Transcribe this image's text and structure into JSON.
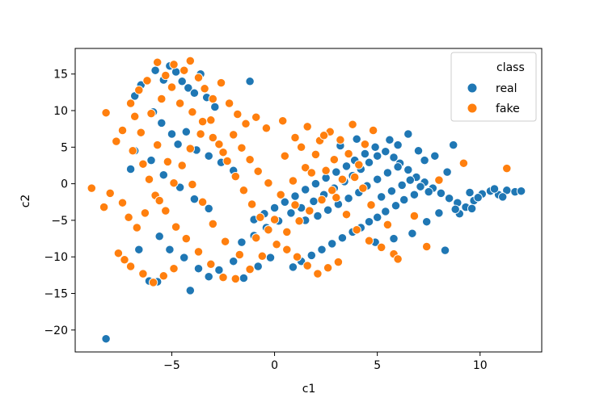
{
  "chart_data": {
    "type": "scatter",
    "title": "",
    "xlabel": "c1",
    "ylabel": "c2",
    "xlim": [
      -9.7,
      13.0
    ],
    "ylim": [
      -23.0,
      18.5
    ],
    "xticks": [
      -5,
      0,
      5,
      10
    ],
    "yticks": [
      -20,
      -15,
      -10,
      -5,
      0,
      5,
      10,
      15
    ],
    "xtick_labels": [
      "−5",
      "0",
      "5",
      "10"
    ],
    "ytick_labels": [
      "−20",
      "−15",
      "−10",
      "−5",
      "0",
      "5",
      "10",
      "15"
    ],
    "grid": false,
    "legend": {
      "title": "class",
      "position": "top-right",
      "entries": [
        {
          "label": "real",
          "color": "#1f77b4"
        },
        {
          "label": "fake",
          "color": "#ff7f0e"
        }
      ]
    },
    "series": [
      {
        "name": "real",
        "color": "#1f77b4",
        "points": [
          [
            -8.2,
            -21.2
          ],
          [
            -6.8,
            12.0
          ],
          [
            -6.5,
            13.5
          ],
          [
            -5.8,
            15.5
          ],
          [
            -5.4,
            14.2
          ],
          [
            -5.1,
            16.1
          ],
          [
            -4.8,
            15.3
          ],
          [
            -4.5,
            14.0
          ],
          [
            -4.2,
            13.1
          ],
          [
            -3.9,
            12.4
          ],
          [
            -3.6,
            15.0
          ],
          [
            -3.3,
            11.8
          ],
          [
            -2.9,
            10.5
          ],
          [
            -1.2,
            14.0
          ],
          [
            -5.9,
            9.8
          ],
          [
            -5.5,
            8.3
          ],
          [
            -5.0,
            6.8
          ],
          [
            -4.7,
            5.4
          ],
          [
            -4.3,
            7.1
          ],
          [
            -3.8,
            4.6
          ],
          [
            -3.2,
            3.8
          ],
          [
            -2.6,
            2.9
          ],
          [
            -2.0,
            1.8
          ],
          [
            -6.0,
            3.2
          ],
          [
            -6.8,
            4.5
          ],
          [
            -7.0,
            2.0
          ],
          [
            -5.4,
            1.2
          ],
          [
            -4.6,
            -0.5
          ],
          [
            -3.9,
            -2.1
          ],
          [
            -3.2,
            -3.4
          ],
          [
            -5.6,
            -7.2
          ],
          [
            -5.1,
            -9.0
          ],
          [
            -4.4,
            -10.1
          ],
          [
            -3.7,
            -11.6
          ],
          [
            -3.2,
            -12.7
          ],
          [
            -2.7,
            -11.8
          ],
          [
            -2.0,
            -10.6
          ],
          [
            -1.5,
            -12.9
          ],
          [
            -0.8,
            -11.3
          ],
          [
            -0.2,
            -10.1
          ],
          [
            -4.1,
            -14.6
          ],
          [
            -5.7,
            -13.4
          ],
          [
            -6.1,
            -13.3
          ],
          [
            -6.6,
            -9.0
          ],
          [
            -1.6,
            -8.0
          ],
          [
            -1.0,
            -7.1
          ],
          [
            -0.4,
            -6.0
          ],
          [
            0.2,
            -5.1
          ],
          [
            0.8,
            -4.0
          ],
          [
            1.3,
            -3.3
          ],
          [
            1.9,
            -2.4
          ],
          [
            2.4,
            -1.5
          ],
          [
            2.9,
            -0.6
          ],
          [
            3.4,
            0.3
          ],
          [
            3.8,
            1.1
          ],
          [
            4.2,
            2.0
          ],
          [
            4.6,
            2.9
          ],
          [
            5.0,
            3.8
          ],
          [
            5.4,
            4.4
          ],
          [
            5.8,
            3.6
          ],
          [
            6.1,
            2.8
          ],
          [
            6.5,
            1.9
          ],
          [
            6.9,
            0.9
          ],
          [
            7.3,
            0.2
          ],
          [
            7.7,
            -0.6
          ],
          [
            8.1,
            -1.3
          ],
          [
            8.5,
            -2.0
          ],
          [
            8.9,
            -2.6
          ],
          [
            9.3,
            -3.2
          ],
          [
            9.7,
            -2.3
          ],
          [
            10.1,
            -1.4
          ],
          [
            10.5,
            -1.0
          ],
          [
            10.9,
            -1.5
          ],
          [
            11.3,
            -0.9
          ],
          [
            11.7,
            -1.1
          ],
          [
            12.0,
            -1.0
          ],
          [
            11.1,
            -1.8
          ],
          [
            10.7,
            -0.7
          ],
          [
            9.9,
            -1.9
          ],
          [
            9.5,
            -1.2
          ],
          [
            8.7,
            5.3
          ],
          [
            8.3,
            -9.1
          ],
          [
            6.5,
            6.8
          ],
          [
            7.0,
            4.5
          ],
          [
            7.3,
            3.2
          ],
          [
            6.8,
            -1.5
          ],
          [
            6.3,
            -2.2
          ],
          [
            5.9,
            -3.0
          ],
          [
            5.4,
            -3.8
          ],
          [
            5.0,
            -4.6
          ],
          [
            4.6,
            -5.2
          ],
          [
            4.2,
            -6.0
          ],
          [
            3.8,
            -6.6
          ],
          [
            3.3,
            -7.4
          ],
          [
            2.8,
            -8.2
          ],
          [
            2.3,
            -9.0
          ],
          [
            1.8,
            -9.8
          ],
          [
            1.3,
            -10.6
          ],
          [
            0.9,
            -11.4
          ],
          [
            1.5,
            -5.0
          ],
          [
            2.1,
            -4.4
          ],
          [
            2.6,
            -3.6
          ],
          [
            3.1,
            -2.8
          ],
          [
            3.6,
            -2.0
          ],
          [
            4.1,
            -1.2
          ],
          [
            4.5,
            -0.3
          ],
          [
            5.0,
            0.6
          ],
          [
            5.5,
            1.5
          ],
          [
            6.0,
            2.3
          ],
          [
            4.9,
            5.0
          ],
          [
            4.4,
            4.1
          ],
          [
            3.9,
            3.2
          ],
          [
            3.5,
            2.4
          ],
          [
            3.0,
            1.6
          ],
          [
            2.5,
            0.8
          ],
          [
            2.0,
            0.0
          ],
          [
            1.5,
            -0.8
          ],
          [
            1.0,
            -1.7
          ],
          [
            0.5,
            -2.5
          ],
          [
            0.0,
            -3.3
          ],
          [
            -0.5,
            -4.1
          ],
          [
            -1.0,
            -4.9
          ],
          [
            5.2,
            -1.8
          ],
          [
            5.7,
            -1.0
          ],
          [
            6.2,
            -0.2
          ],
          [
            6.6,
            0.5
          ],
          [
            7.1,
            -0.4
          ],
          [
            7.5,
            -1.1
          ],
          [
            3.2,
            5.2
          ],
          [
            4.0,
            6.1
          ],
          [
            5.6,
            6.0
          ],
          [
            6.0,
            5.3
          ],
          [
            7.8,
            3.8
          ],
          [
            8.4,
            1.6
          ],
          [
            8.0,
            -4.0
          ],
          [
            7.4,
            -5.2
          ],
          [
            6.7,
            -6.8
          ],
          [
            5.8,
            -7.5
          ],
          [
            4.9,
            -8.0
          ],
          [
            9.0,
            -4.1
          ],
          [
            8.8,
            -3.5
          ],
          [
            9.6,
            -3.4
          ]
        ]
      },
      {
        "name": "fake",
        "color": "#ff7f0e",
        "points": [
          [
            -8.9,
            -0.6
          ],
          [
            -8.3,
            -3.2
          ],
          [
            -8.2,
            9.7
          ],
          [
            -7.7,
            5.8
          ],
          [
            -7.4,
            7.3
          ],
          [
            -7.0,
            11.0
          ],
          [
            -6.6,
            12.8
          ],
          [
            -6.2,
            14.1
          ],
          [
            -5.7,
            16.6
          ],
          [
            -5.3,
            14.8
          ],
          [
            -4.9,
            16.3
          ],
          [
            -4.4,
            15.5
          ],
          [
            -4.1,
            16.8
          ],
          [
            -3.7,
            14.5
          ],
          [
            -3.4,
            13.0
          ],
          [
            -3.0,
            11.6
          ],
          [
            -2.6,
            13.8
          ],
          [
            -2.2,
            11.0
          ],
          [
            -1.8,
            9.5
          ],
          [
            -1.4,
            8.2
          ],
          [
            -0.9,
            9.1
          ],
          [
            -0.4,
            7.6
          ],
          [
            0.4,
            8.6
          ],
          [
            1.0,
            6.3
          ],
          [
            1.6,
            7.8
          ],
          [
            2.2,
            5.9
          ],
          [
            2.7,
            7.1
          ],
          [
            3.2,
            6.0
          ],
          [
            3.8,
            8.1
          ],
          [
            4.4,
            5.4
          ],
          [
            4.8,
            7.3
          ],
          [
            -6.9,
            4.5
          ],
          [
            -6.4,
            2.7
          ],
          [
            -6.1,
            0.6
          ],
          [
            -5.8,
            -1.6
          ],
          [
            -5.3,
            -3.7
          ],
          [
            -4.8,
            -5.9
          ],
          [
            -4.3,
            -7.5
          ],
          [
            -3.7,
            -9.3
          ],
          [
            -3.1,
            -11.0
          ],
          [
            -2.5,
            -12.8
          ],
          [
            -1.9,
            -13.0
          ],
          [
            -1.2,
            -11.7
          ],
          [
            -0.6,
            -9.9
          ],
          [
            0.1,
            -8.3
          ],
          [
            0.6,
            -6.6
          ],
          [
            1.2,
            -5.1
          ],
          [
            1.7,
            -3.7
          ],
          [
            2.3,
            -2.2
          ],
          [
            2.8,
            -0.9
          ],
          [
            3.3,
            0.6
          ],
          [
            -7.3,
            -10.4
          ],
          [
            -7.0,
            -11.3
          ],
          [
            -6.4,
            -12.3
          ],
          [
            -5.9,
            -13.5
          ],
          [
            -5.4,
            -12.6
          ],
          [
            -4.9,
            -11.6
          ],
          [
            -7.6,
            -9.5
          ],
          [
            -6.7,
            -6.0
          ],
          [
            -6.3,
            -4.0
          ],
          [
            -5.6,
            -2.3
          ],
          [
            -4.9,
            0.1
          ],
          [
            -4.5,
            2.5
          ],
          [
            -4.1,
            4.8
          ],
          [
            -3.6,
            6.8
          ],
          [
            -3.1,
            8.7
          ],
          [
            -2.7,
            5.4
          ],
          [
            -2.3,
            3.1
          ],
          [
            -1.9,
            1.0
          ],
          [
            -1.5,
            -0.9
          ],
          [
            -1.1,
            -2.8
          ],
          [
            -0.7,
            -4.6
          ],
          [
            -0.3,
            -6.3
          ],
          [
            0.3,
            -1.5
          ],
          [
            0.9,
            0.4
          ],
          [
            1.5,
            2.2
          ],
          [
            2.0,
            4.0
          ],
          [
            2.5,
            1.8
          ],
          [
            3.0,
            -1.9
          ],
          [
            3.5,
            -4.2
          ],
          [
            4.0,
            -6.3
          ],
          [
            4.6,
            -7.8
          ],
          [
            5.2,
            -8.7
          ],
          [
            5.8,
            -9.6
          ],
          [
            6.0,
            -10.3
          ],
          [
            3.1,
            -10.7
          ],
          [
            2.6,
            -11.5
          ],
          [
            2.1,
            -12.3
          ],
          [
            1.6,
            -11.2
          ],
          [
            1.1,
            -10.0
          ],
          [
            0.6,
            -9.0
          ],
          [
            -8.0,
            -1.3
          ],
          [
            -7.4,
            -2.6
          ],
          [
            -7.1,
            -4.6
          ],
          [
            -6.0,
            9.6
          ],
          [
            -5.5,
            11.6
          ],
          [
            -5.0,
            13.2
          ],
          [
            -4.6,
            11.0
          ],
          [
            -4.0,
            9.8
          ],
          [
            -3.5,
            8.5
          ],
          [
            -3.0,
            6.3
          ],
          [
            -2.5,
            4.3
          ],
          [
            -2.0,
            6.7
          ],
          [
            -1.6,
            4.9
          ],
          [
            -1.2,
            3.3
          ],
          [
            -0.8,
            1.7
          ],
          [
            -0.3,
            0.1
          ],
          [
            0.5,
            3.8
          ],
          [
            1.3,
            5.0
          ],
          [
            2.4,
            6.6
          ],
          [
            3.6,
            4.1
          ],
          [
            4.1,
            2.6
          ],
          [
            11.3,
            2.1
          ],
          [
            9.2,
            2.8
          ],
          [
            7.4,
            -8.6
          ],
          [
            8.0,
            0.5
          ],
          [
            6.8,
            -4.4
          ],
          [
            5.5,
            -5.6
          ],
          [
            4.7,
            -2.9
          ],
          [
            4.3,
            -0.6
          ],
          [
            3.9,
            0.9
          ],
          [
            2.9,
            3.3
          ],
          [
            1.8,
            1.5
          ],
          [
            1.0,
            -2.9
          ],
          [
            0.0,
            -4.9
          ],
          [
            -0.9,
            -7.4
          ],
          [
            -1.7,
            -9.7
          ],
          [
            -2.4,
            -7.9
          ],
          [
            -3.0,
            -5.5
          ],
          [
            -3.5,
            -2.5
          ],
          [
            -4.0,
            -0.1
          ],
          [
            -5.2,
            3.0
          ],
          [
            -5.7,
            5.3
          ],
          [
            -6.5,
            7.0
          ],
          [
            -6.8,
            9.2
          ]
        ]
      }
    ]
  }
}
